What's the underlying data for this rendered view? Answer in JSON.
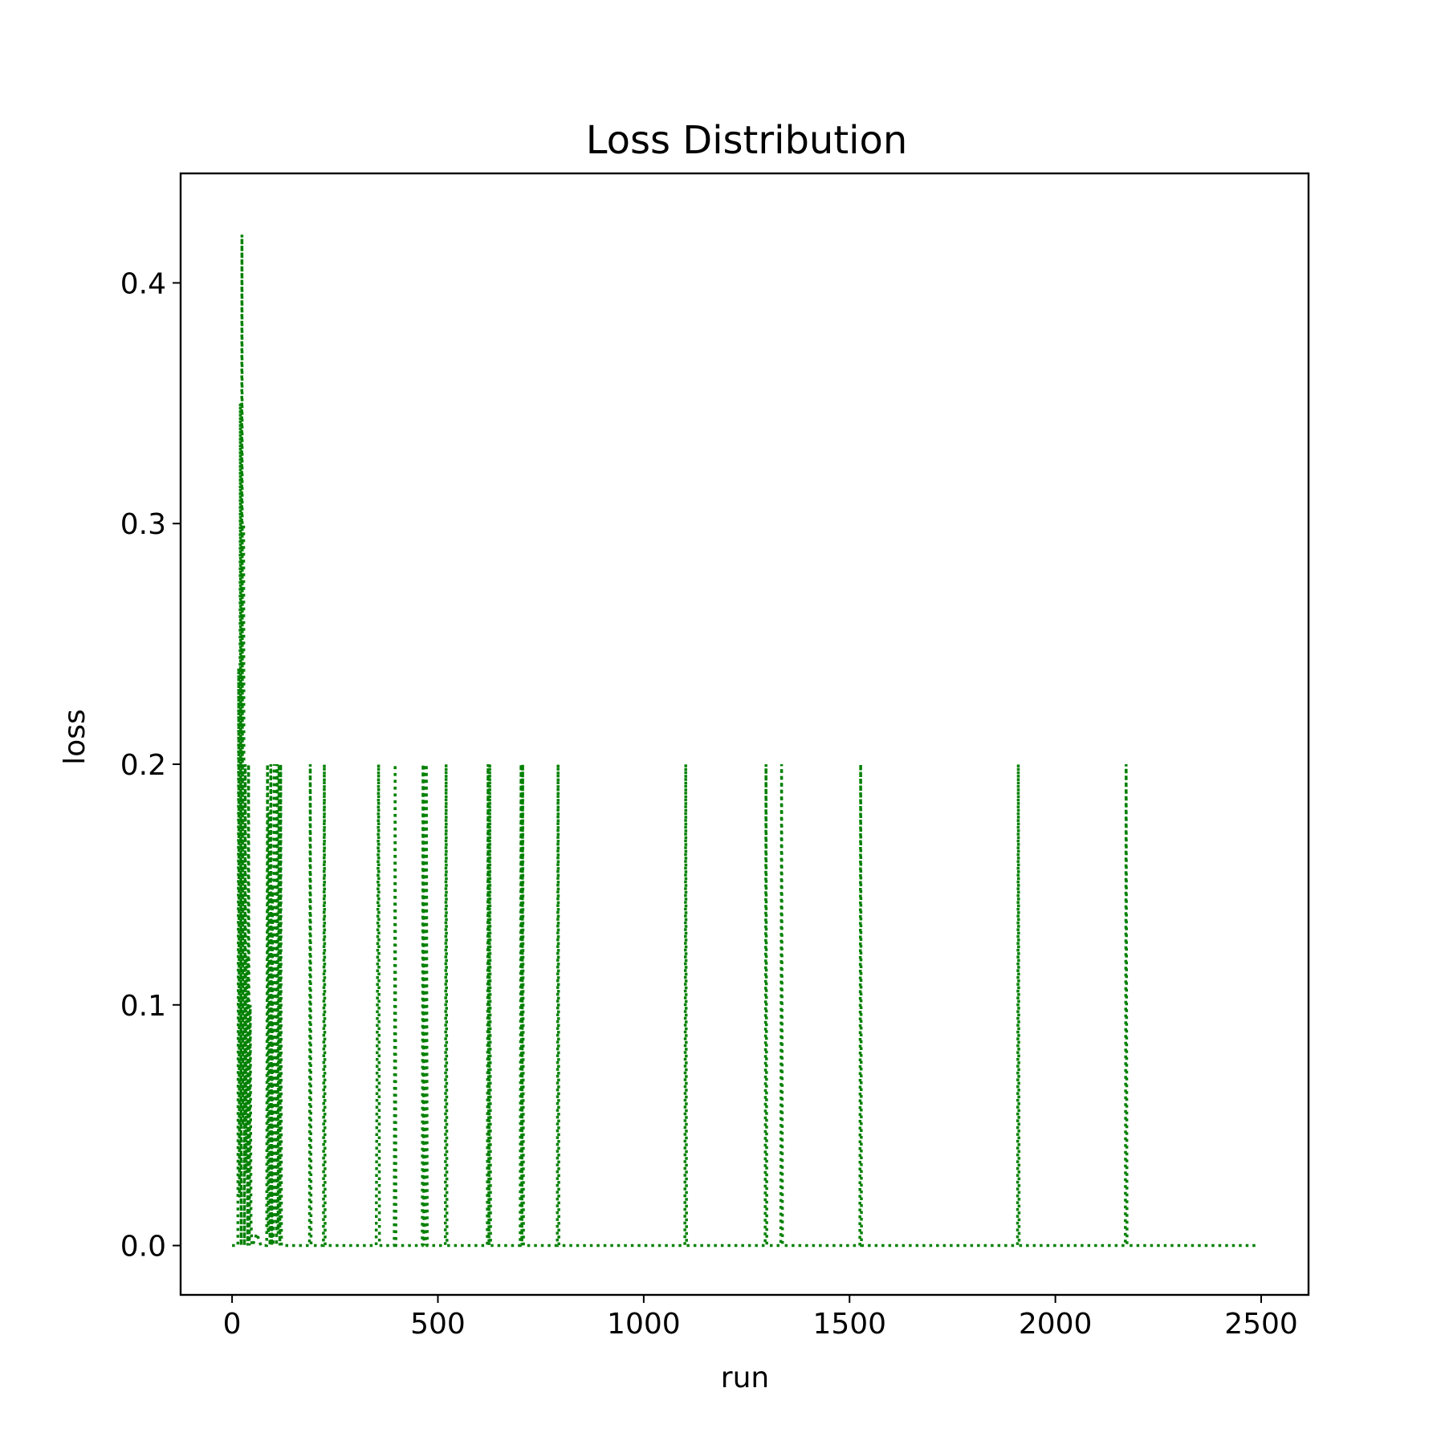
{
  "chart_data": {
    "type": "line",
    "title": "Loss Distribution",
    "xlabel": "run",
    "ylabel": "loss",
    "xlim": [
      -125,
      2615
    ],
    "ylim": [
      -0.0205,
      0.4455
    ],
    "xticks": [
      0,
      500,
      1000,
      1500,
      2000,
      2500
    ],
    "yticks": [
      0.0,
      0.1,
      0.2,
      0.3,
      0.4
    ],
    "xtick_labels": [
      "0",
      "500",
      "1000",
      "1500",
      "2000",
      "2500"
    ],
    "ytick_labels": [
      "0.0",
      "0.1",
      "0.2",
      "0.3",
      "0.4"
    ],
    "grid": false,
    "legend": "none",
    "color": "#008000",
    "line_style": "dotted",
    "series": [
      {
        "x": [
          0,
          14,
          16,
          18,
          20,
          22,
          24,
          26,
          28,
          30,
          32,
          34,
          36,
          38,
          40,
          42,
          44,
          46,
          48,
          50,
          60,
          70,
          80,
          84,
          86,
          88,
          90,
          92,
          94,
          96,
          98,
          100,
          102,
          104,
          106,
          108,
          110,
          112,
          114,
          116,
          118,
          120,
          140,
          188,
          190,
          192,
          222,
          224,
          226,
          350,
          356,
          358,
          394,
          396,
          398,
          462,
          464,
          466,
          468,
          470,
          472,
          474,
          518,
          520,
          522,
          620,
          622,
          624,
          626,
          628,
          700,
          702,
          704,
          706,
          708,
          790,
          792,
          794,
          1100,
          1102,
          1104,
          1295,
          1297,
          1299,
          1333,
          1335,
          1337,
          1525,
          1527,
          1529,
          1908,
          1910,
          1912,
          2170,
          2172,
          2174,
          2400,
          2490
        ],
        "y": [
          0.0,
          0.0,
          0.24,
          0.02,
          0.35,
          0.0,
          0.42,
          0.05,
          0.3,
          0.0,
          0.2,
          0.03,
          0.12,
          0.0,
          0.2,
          0.0,
          0.1,
          0.01,
          0.0,
          0.0,
          0.005,
          0.0,
          0.0,
          0.0,
          0.2,
          0.005,
          0.18,
          0.0,
          0.2,
          0.0,
          0.15,
          0.0,
          0.2,
          0.01,
          0.2,
          0.0,
          0.2,
          0.005,
          0.2,
          0.0,
          0.2,
          0.0,
          0.0,
          0.0,
          0.2,
          0.0,
          0.0,
          0.2,
          0.0,
          0.0,
          0.2,
          0.0,
          0.0,
          0.2,
          0.0,
          0.0,
          0.2,
          0.0,
          0.2,
          0.0,
          0.2,
          0.0,
          0.0,
          0.2,
          0.0,
          0.0,
          0.2,
          0.0,
          0.2,
          0.0,
          0.0,
          0.2,
          0.0,
          0.2,
          0.0,
          0.0,
          0.2,
          0.0,
          0.0,
          0.2,
          0.0,
          0.0,
          0.2,
          0.0,
          0.0,
          0.2,
          0.0,
          0.0,
          0.2,
          0.0,
          0.0,
          0.2,
          0.0,
          0.0,
          0.2,
          0.0,
          0.0,
          0.0
        ]
      }
    ]
  }
}
